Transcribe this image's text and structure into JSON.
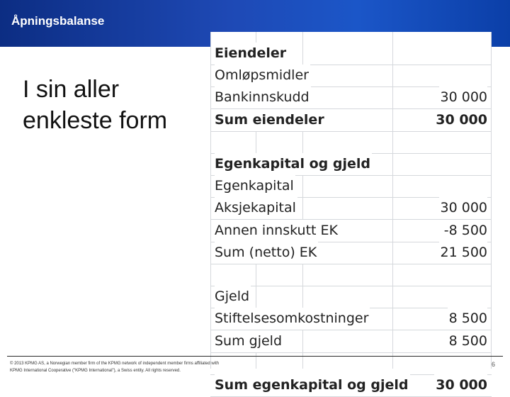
{
  "slide": {
    "title": "Åpningsbalanse",
    "subtitle": "I sin aller enkleste form",
    "footer_line1": "© 2013 KPMG AS, a Norwegian member firm of the KPMG network of independent member firms affiliated with",
    "footer_line2": "KPMG International Cooperative (\"KPMG International\"), a Swiss entity. All rights reserved.",
    "page_number": "6"
  },
  "table": {
    "rows": [
      {
        "label": "Eiendeler",
        "value": "",
        "bold": true
      },
      {
        "label": "Omløpsmidler",
        "value": "",
        "bold": false
      },
      {
        "label": "Bankinnskudd",
        "value": "30 000",
        "bold": false
      },
      {
        "label": "Sum eiendeler",
        "value": "30 000",
        "bold": true
      },
      {
        "label": "",
        "value": "",
        "bold": false
      },
      {
        "label": "Egenkapital og gjeld",
        "value": "",
        "bold": true
      },
      {
        "label": "Egenkapital",
        "value": "",
        "bold": false
      },
      {
        "label": "Aksjekapital",
        "value": "30 000",
        "bold": false
      },
      {
        "label": "Annen innskutt EK",
        "value": "-8 500",
        "bold": false
      },
      {
        "label": "Sum (netto) EK",
        "value": "21 500",
        "bold": false
      },
      {
        "label": "",
        "value": "",
        "bold": false
      },
      {
        "label": "Gjeld",
        "value": "",
        "bold": false
      },
      {
        "label": "Stiftelsesomkostninger",
        "value": "8 500",
        "bold": false
      },
      {
        "label": "Sum gjeld",
        "value": "8 500",
        "bold": false
      },
      {
        "label": "",
        "value": "",
        "bold": false
      },
      {
        "label": "Sum egenkapital og gjeld",
        "value": "30 000",
        "bold": true
      }
    ]
  }
}
